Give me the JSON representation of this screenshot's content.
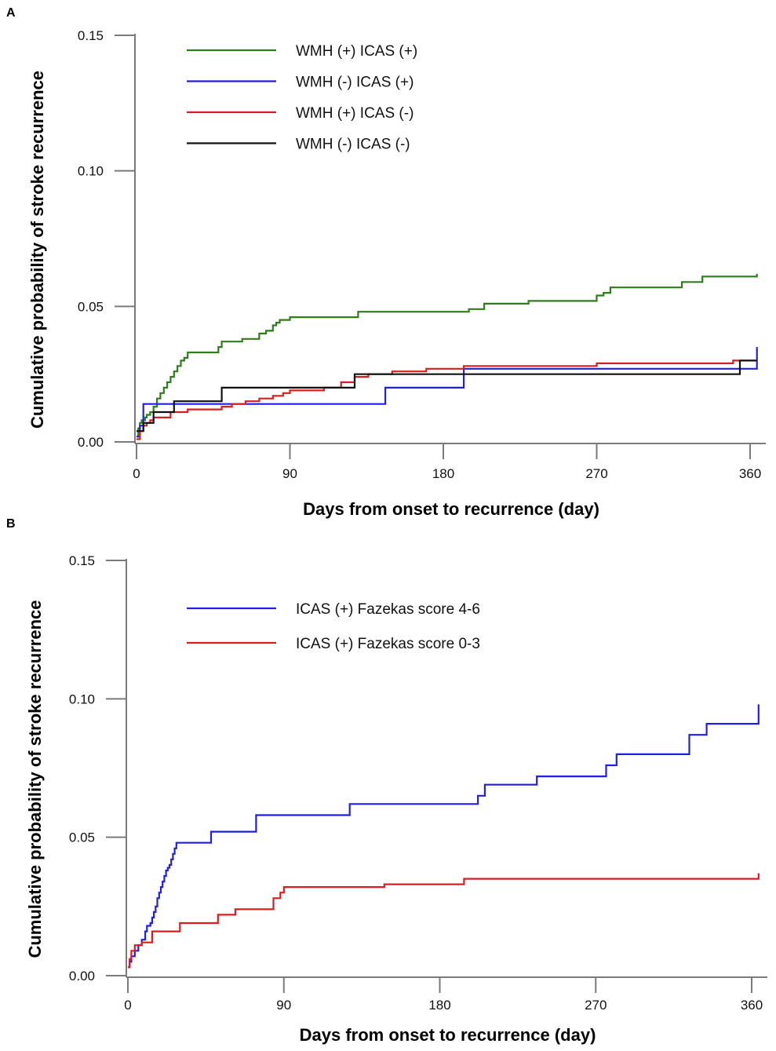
{
  "chart_data": [
    {
      "panel": "A",
      "type": "line",
      "subtype": "step",
      "title": "",
      "xlabel": "Days from onset to recurrence (day)",
      "ylabel": "Cumulative probability of stroke recurrence",
      "xlim": [
        0,
        365
      ],
      "ylim": [
        0,
        0.15
      ],
      "xticks": [
        0,
        90,
        180,
        270,
        360
      ],
      "xtick_labels": [
        "0",
        "90",
        "180",
        "270",
        "360"
      ],
      "yticks": [
        0,
        0.05,
        0.1,
        0.15
      ],
      "ytick_labels": [
        "0.00",
        "0.05",
        "0.10",
        "0.15"
      ],
      "legend_position": "top-left",
      "grid": false,
      "series": [
        {
          "name": "WMH (+) ICAS (+)",
          "color": "#2e7d1a",
          "x": [
            0,
            1,
            2,
            3,
            5,
            6,
            8,
            10,
            12,
            14,
            16,
            18,
            20,
            22,
            24,
            26,
            28,
            30,
            48,
            50,
            54,
            62,
            72,
            76,
            80,
            82,
            84,
            90,
            130,
            195,
            204,
            230,
            270,
            274,
            278,
            286,
            320,
            332,
            364
          ],
          "y": [
            0.002,
            0.005,
            0.007,
            0.008,
            0.009,
            0.01,
            0.011,
            0.013,
            0.016,
            0.018,
            0.02,
            0.022,
            0.024,
            0.026,
            0.028,
            0.03,
            0.031,
            0.033,
            0.035,
            0.037,
            0.037,
            0.038,
            0.04,
            0.041,
            0.043,
            0.044,
            0.045,
            0.046,
            0.048,
            0.049,
            0.051,
            0.052,
            0.054,
            0.055,
            0.057,
            0.057,
            0.059,
            0.061,
            0.062
          ]
        },
        {
          "name": "WMH (-) ICAS (+)",
          "color": "#1f1fe6",
          "x": [
            0,
            2,
            4,
            146,
            192,
            358,
            364
          ],
          "y": [
            0.002,
            0.006,
            0.014,
            0.02,
            0.027,
            0.027,
            0.035
          ]
        },
        {
          "name": "WMH (+) ICAS (-)",
          "color": "#d81e1e",
          "x": [
            0,
            2,
            4,
            6,
            8,
            10,
            14,
            20,
            30,
            50,
            56,
            64,
            72,
            80,
            86,
            90,
            110,
            120,
            128,
            136,
            150,
            170,
            192,
            270,
            350,
            364
          ],
          "y": [
            0.001,
            0.004,
            0.006,
            0.007,
            0.008,
            0.009,
            0.009,
            0.011,
            0.012,
            0.013,
            0.014,
            0.015,
            0.016,
            0.017,
            0.018,
            0.019,
            0.02,
            0.022,
            0.024,
            0.025,
            0.026,
            0.027,
            0.028,
            0.029,
            0.03,
            0.03
          ]
        },
        {
          "name": "WMH (-) ICAS (-)",
          "color": "#111111",
          "x": [
            0,
            4,
            10,
            22,
            50,
            128,
            354,
            364
          ],
          "y": [
            0.004,
            0.007,
            0.011,
            0.015,
            0.02,
            0.025,
            0.03,
            0.03
          ]
        }
      ]
    },
    {
      "panel": "B",
      "type": "line",
      "subtype": "step",
      "title": "",
      "xlabel": "Days from onset to recurrence (day)",
      "ylabel": "Cumulative probability of stroke recurrence",
      "xlim": [
        0,
        365
      ],
      "ylim": [
        0,
        0.15
      ],
      "xticks": [
        0,
        90,
        180,
        270,
        360
      ],
      "xtick_labels": [
        "0",
        "90",
        "180",
        "270",
        "360"
      ],
      "yticks": [
        0,
        0.05,
        0.1,
        0.15
      ],
      "ytick_labels": [
        "0.00",
        "0.05",
        "0.10",
        "0.15"
      ],
      "legend_position": "top-left",
      "grid": false,
      "series": [
        {
          "name": "ICAS (+) Fazekas score 4-6",
          "color": "#1f1fe6",
          "x": [
            0,
            1,
            2,
            4,
            6,
            8,
            10,
            11,
            12,
            13,
            14,
            15,
            16,
            17,
            18,
            19,
            20,
            21,
            22,
            23,
            24,
            25,
            26,
            27,
            28,
            48,
            74,
            128,
            202,
            206,
            236,
            276,
            282,
            324,
            334,
            364
          ],
          "y": [
            0.003,
            0.005,
            0.007,
            0.009,
            0.011,
            0.013,
            0.016,
            0.018,
            0.018,
            0.019,
            0.021,
            0.023,
            0.025,
            0.028,
            0.03,
            0.032,
            0.034,
            0.036,
            0.038,
            0.039,
            0.04,
            0.042,
            0.044,
            0.046,
            0.048,
            0.052,
            0.058,
            0.062,
            0.065,
            0.069,
            0.072,
            0.076,
            0.08,
            0.087,
            0.091,
            0.098
          ]
        },
        {
          "name": "ICAS (+) Fazekas score 0-3",
          "color": "#d81e1e",
          "x": [
            0,
            1,
            2,
            4,
            8,
            14,
            30,
            52,
            62,
            84,
            88,
            90,
            148,
            194,
            364
          ],
          "y": [
            0.003,
            0.006,
            0.009,
            0.011,
            0.012,
            0.016,
            0.019,
            0.022,
            0.024,
            0.028,
            0.03,
            0.032,
            0.033,
            0.035,
            0.037
          ]
        }
      ]
    }
  ]
}
